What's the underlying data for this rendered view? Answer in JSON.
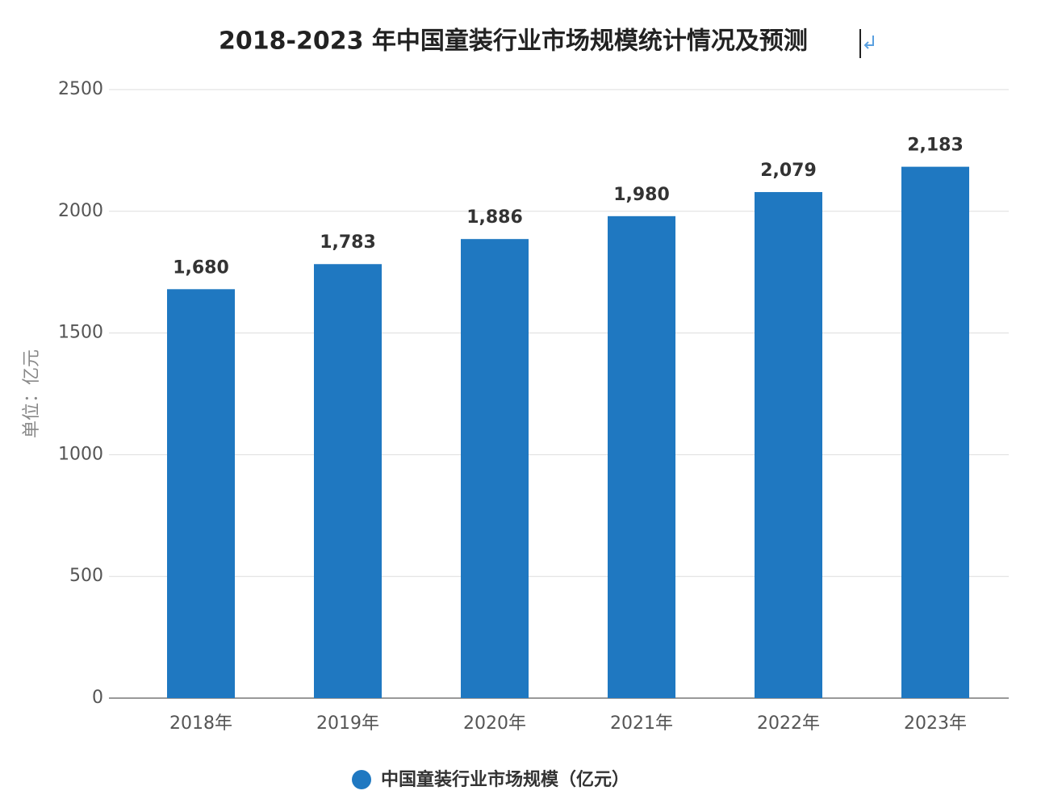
{
  "chart_data": {
    "type": "bar",
    "title": "2018-2023 年中国童装行业市场规模统计情况及预测",
    "y_label": "单位：亿元",
    "categories": [
      "2018年",
      "2019年",
      "2020年",
      "2021年",
      "2022年",
      "2023年"
    ],
    "series": [
      {
        "name": "中国童装行业市场规模（亿元）",
        "color": "#1f78c1",
        "values": [
          1680,
          1783,
          1886,
          1980,
          2079,
          2183
        ],
        "value_labels": [
          "1,680",
          "1,783",
          "1,886",
          "1,980",
          "2,079",
          "2,183"
        ]
      }
    ],
    "ylim": [
      0,
      2500
    ],
    "yticks": [
      0,
      500,
      1000,
      1500,
      2000,
      2500
    ],
    "grid": true,
    "legend": "bottom"
  }
}
